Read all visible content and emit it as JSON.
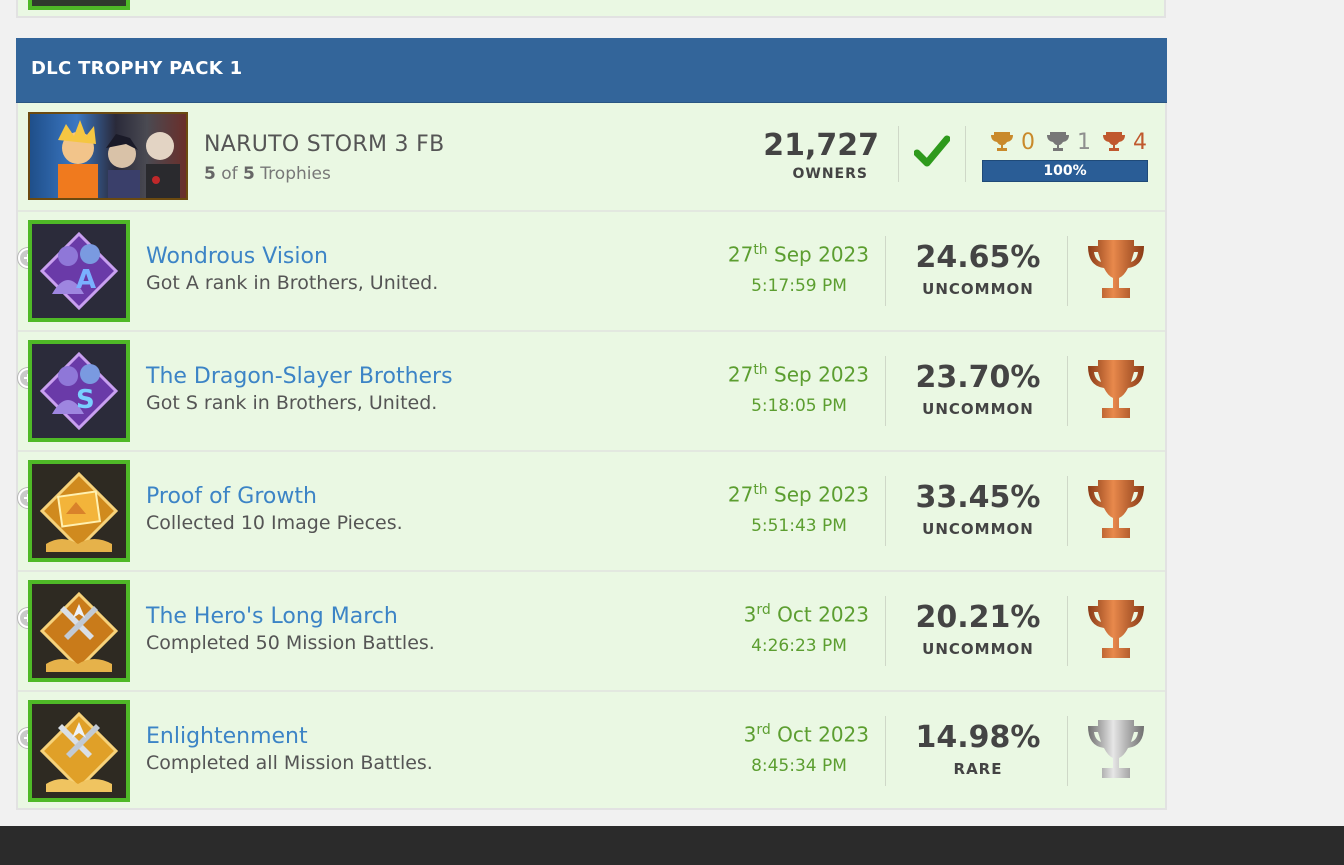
{
  "section": {
    "title": "DLC TROPHY PACK 1"
  },
  "game": {
    "title": "NARUTO STORM 3 FB",
    "earned": "5",
    "of_label": "of",
    "total": "5",
    "trophies_label": "Trophies",
    "owners": "21,727",
    "owners_label": "OWNERS",
    "counts": {
      "gold": "0",
      "silver": "1",
      "bronze": "4"
    },
    "progress": "100%"
  },
  "trophies": [
    {
      "name": "Wondrous Vision",
      "desc": "Got A rank in Brothers, United.",
      "day": "27",
      "suffix": "th",
      "month_year": "Sep 2023",
      "time": "5:17:59 PM",
      "pct": "24.65%",
      "rarity": "UNCOMMON",
      "grade": "bronze"
    },
    {
      "name": "The Dragon-Slayer Brothers",
      "desc": "Got S rank in Brothers, United.",
      "day": "27",
      "suffix": "th",
      "month_year": "Sep 2023",
      "time": "5:18:05 PM",
      "pct": "23.70%",
      "rarity": "UNCOMMON",
      "grade": "bronze"
    },
    {
      "name": "Proof of Growth",
      "desc": "Collected 10 Image Pieces.",
      "day": "27",
      "suffix": "th",
      "month_year": "Sep 2023",
      "time": "5:51:43 PM",
      "pct": "33.45%",
      "rarity": "UNCOMMON",
      "grade": "bronze"
    },
    {
      "name": "The Hero's Long March",
      "desc": "Completed 50 Mission Battles.",
      "day": "3",
      "suffix": "rd",
      "month_year": "Oct 2023",
      "time": "4:26:23 PM",
      "pct": "20.21%",
      "rarity": "UNCOMMON",
      "grade": "bronze"
    },
    {
      "name": "Enlightenment",
      "desc": "Completed all Mission Battles.",
      "day": "3",
      "suffix": "rd",
      "month_year": "Oct 2023",
      "time": "8:45:34 PM",
      "pct": "14.98%",
      "rarity": "RARE",
      "grade": "silver"
    }
  ],
  "colors": {
    "header_bg": "#33659a",
    "row_bg": "#eaf8e3",
    "earned_border": "#4fb927",
    "link": "#3c84c6",
    "date_green": "#5c9e30",
    "gold": "#c98a2b",
    "silver": "#8f8f8f",
    "bronze": "#c0592e",
    "check": "#2e9a1c"
  }
}
